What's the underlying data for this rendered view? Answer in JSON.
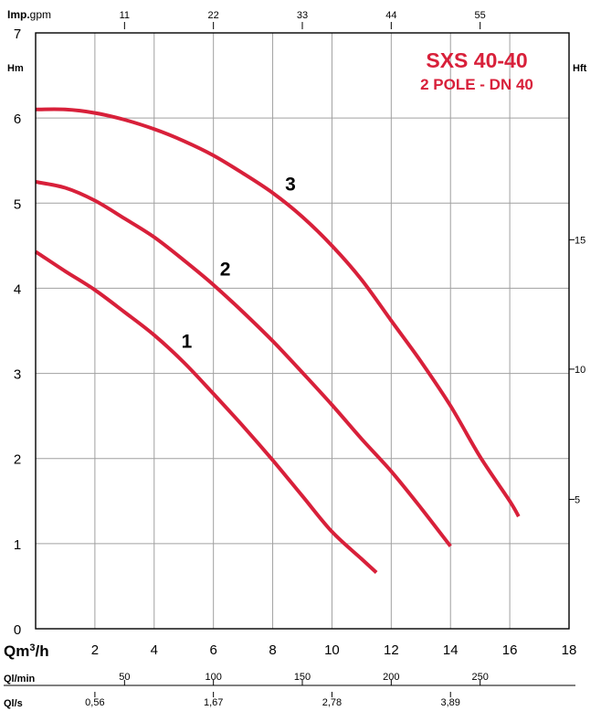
{
  "chart_data": {
    "type": "line",
    "title": "SXS 40-40",
    "subtitle": "2 POLE - DN 40",
    "xlabel": "Qm³/h",
    "ylabel": "Hm",
    "ylabel_right": "Hft",
    "top_axis_label_bold": "Imp.",
    "top_axis_label_unit": "gpm",
    "xlim": [
      0,
      18
    ],
    "ylim": [
      0,
      7
    ],
    "grid": true,
    "x_ticks": [
      "2",
      "4",
      "6",
      "8",
      "10",
      "12",
      "14",
      "16",
      "18"
    ],
    "y_ticks": [
      "0",
      "1",
      "2",
      "3",
      "4",
      "5",
      "6",
      "7"
    ],
    "top_ticks": [
      {
        "label": "11",
        "x": 3.0
      },
      {
        "label": "22",
        "x": 6.0
      },
      {
        "label": "33",
        "x": 9.0
      },
      {
        "label": "44",
        "x": 12.0
      },
      {
        "label": "55",
        "x": 15.0
      }
    ],
    "right_ticks": [
      {
        "label": "5",
        "y": 1.52
      },
      {
        "label": "10",
        "y": 3.05
      },
      {
        "label": "15",
        "y": 4.57
      }
    ],
    "ql_min": {
      "label": "Ql/min",
      "ticks": [
        {
          "label": "50",
          "x": 3.0
        },
        {
          "label": "100",
          "x": 6.0
        },
        {
          "label": "150",
          "x": 9.0
        },
        {
          "label": "200",
          "x": 12.0
        },
        {
          "label": "250",
          "x": 15.0
        }
      ]
    },
    "ql_s": {
      "label": "Ql/s",
      "ticks": [
        {
          "label": "0,56",
          "x": 2.0
        },
        {
          "label": "1,67",
          "x": 6.0
        },
        {
          "label": "2,78",
          "x": 10.0
        },
        {
          "label": "3,89",
          "x": 14.0
        }
      ]
    },
    "series": [
      {
        "name": "1",
        "label_at": [
          5.1,
          3.3
        ],
        "x": [
          0,
          1,
          2,
          3,
          4,
          5,
          6,
          7,
          8,
          9,
          10,
          11,
          11.5
        ],
        "y": [
          4.43,
          4.2,
          3.98,
          3.72,
          3.45,
          3.13,
          2.76,
          2.38,
          1.98,
          1.56,
          1.14,
          0.82,
          0.66
        ]
      },
      {
        "name": "2",
        "label_at": [
          6.4,
          4.15
        ],
        "x": [
          0,
          1,
          2,
          3,
          4,
          5,
          6,
          7,
          8,
          9,
          10,
          11,
          12,
          13,
          14
        ],
        "y": [
          5.25,
          5.18,
          5.03,
          4.82,
          4.6,
          4.33,
          4.04,
          3.72,
          3.38,
          3.01,
          2.63,
          2.23,
          1.85,
          1.42,
          0.97
        ]
      },
      {
        "name": "3",
        "label_at": [
          8.6,
          5.15
        ],
        "x": [
          0,
          1,
          2,
          3,
          4,
          5,
          6,
          7,
          8,
          9,
          10,
          11,
          12,
          13,
          14,
          15,
          16,
          16.3
        ],
        "y": [
          6.1,
          6.1,
          6.06,
          5.98,
          5.87,
          5.73,
          5.56,
          5.35,
          5.12,
          4.84,
          4.5,
          4.1,
          3.62,
          3.14,
          2.62,
          2.02,
          1.5,
          1.32
        ]
      }
    ],
    "curve_color": "#d8203a"
  }
}
